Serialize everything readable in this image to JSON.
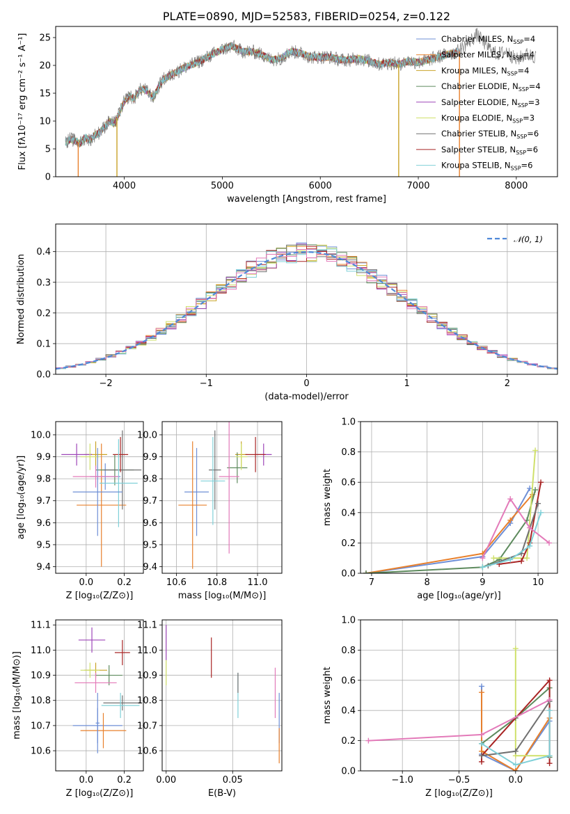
{
  "series_colors": [
    "#6e8fd6",
    "#e8802c",
    "#c9a227",
    "#5d8a5d",
    "#9e46b8",
    "#cfe06a",
    "#707070",
    "#a82424",
    "#7fd0d8"
  ],
  "accent_colors": {
    "normal_curve": "#4f88d8",
    "pink": "#e37ab9"
  },
  "chart_data": [
    {
      "id": "spectrum",
      "type": "line",
      "title": "PLATE=0890, MJD=52583, FIBERID=0254, z=0.122",
      "xlabel": "wavelength [Angstrom, rest frame]",
      "ylabel": "Flux [fλ10⁻¹⁷ erg cm⁻² s⁻¹ A⁻¹]",
      "xlim": [
        3300,
        8420
      ],
      "ylim": [
        0,
        27
      ],
      "xticks": [
        "4000",
        "5000",
        "6000",
        "7000",
        "8000"
      ],
      "yticks": [
        "0",
        "5",
        "10",
        "15",
        "20",
        "25"
      ],
      "legend_position": "upper-right",
      "series": [
        {
          "name": "Chabrier MILES, N_SSP=4"
        },
        {
          "name": "Salpeter MILES, N_SSP=4"
        },
        {
          "name": "Kroupa MILES, N_SSP=4"
        },
        {
          "name": "Chabrier ELODIE, N_SSP=4"
        },
        {
          "name": "Salpeter ELODIE, N_SSP=3"
        },
        {
          "name": "Kroupa ELODIE, N_SSP=3"
        },
        {
          "name": "Chabrier STELIB, N_SSP=6"
        },
        {
          "name": "Salpeter STELIB, N_SSP=6"
        },
        {
          "name": "Kroupa STELIB, N_SSP=6"
        }
      ],
      "envelope": {
        "x": [
          3400,
          3450,
          3500,
          3550,
          3600,
          3650,
          3700,
          3750,
          3800,
          3850,
          3900,
          3950,
          4000,
          4050,
          4100,
          4150,
          4200,
          4250,
          4300,
          4350,
          4400,
          4500,
          4600,
          4700,
          4800,
          4900,
          5000,
          5100,
          5200,
          5300,
          5400,
          5500,
          5600,
          5700,
          5800,
          5900,
          6000,
          6100,
          6200,
          6300,
          6400,
          6500,
          6600,
          6700,
          6800,
          6900,
          7000,
          7100,
          7200,
          7300,
          7400
        ],
        "y": [
          6.2,
          6.8,
          6.4,
          6.0,
          7.0,
          6.6,
          7.5,
          8.0,
          9.0,
          10.0,
          9.5,
          11.5,
          13.5,
          14.5,
          14.0,
          15.5,
          15.8,
          15.0,
          14.2,
          16.2,
          17.5,
          18.5,
          19.5,
          20.2,
          21.0,
          22.0,
          22.8,
          23.5,
          22.5,
          22.5,
          22.0,
          21.0,
          21.3,
          22.5,
          22.2,
          21.5,
          21.5,
          21.5,
          21.0,
          21.0,
          21.2,
          20.8,
          20.2,
          20.5,
          20.2,
          20.8,
          20.5,
          21.0,
          21.5,
          22.0,
          22.5
        ]
      },
      "extended_series": {
        "x": [
          7400,
          7500,
          7600,
          7700,
          7800,
          7900,
          8000,
          8100,
          8200
        ],
        "y": [
          22.5,
          24.0,
          25.5,
          23.5,
          22.0,
          22.5,
          21.0,
          22.0,
          21.5
        ]
      },
      "dropouts": [
        {
          "x": 3530,
          "color_index": 1
        },
        {
          "x": 3925,
          "color_index": 2
        },
        {
          "x": 6800,
          "color_index": 2
        },
        {
          "x": 7420,
          "color_index": 1
        }
      ]
    },
    {
      "id": "residuals",
      "type": "bar",
      "xlabel": "(data-model)/error",
      "ylabel": "Normed distribution",
      "xlim": [
        -2.5,
        2.5
      ],
      "ylim": [
        0,
        0.49
      ],
      "xticks": [
        "−2",
        "−1",
        "0",
        "1",
        "2"
      ],
      "yticks": [
        "0.0",
        "0.1",
        "0.2",
        "0.3",
        "0.4"
      ],
      "legend_position": "upper-right",
      "curve": {
        "name": "𝒩(0, 1)",
        "mean": 0,
        "sigma": 1
      }
    },
    {
      "id": "age-vs-Z",
      "type": "scatter",
      "xlabel": "Z [log₁₀(Z/Z⊙)]",
      "ylabel": "age  [log₁₀(age/yr)]",
      "xlim": [
        -0.16,
        0.3
      ],
      "ylim": [
        9.37,
        10.06
      ],
      "xticks": [
        "0.0",
        "0.2"
      ],
      "yticks": [
        "9.4",
        "9.5",
        "9.6",
        "9.7",
        "9.8",
        "9.9",
        "10.0"
      ],
      "points": [
        {
          "x": 0.1,
          "y": 9.81,
          "xerr": 0.08,
          "yerr": 0.06,
          "c": 0
        },
        {
          "x": 0.08,
          "y": 9.68,
          "xerr": 0.13,
          "yerr": 0.28,
          "c": 1
        },
        {
          "x": 0.05,
          "y": 9.91,
          "xerr": 0.06,
          "yerr": 0.06,
          "c": 2
        },
        {
          "x": 0.15,
          "y": 9.84,
          "xerr": 0.1,
          "yerr": 0.07,
          "c": 3
        },
        {
          "x": -0.05,
          "y": 9.91,
          "xerr": 0.08,
          "yerr": 0.05,
          "c": 4
        },
        {
          "x": 0.02,
          "y": 9.9,
          "xerr": 0.05,
          "yerr": 0.06,
          "c": 5
        },
        {
          "x": 0.19,
          "y": 9.84,
          "xerr": 0.1,
          "yerr": 0.18,
          "c": 6
        },
        {
          "x": 0.18,
          "y": 9.91,
          "xerr": 0.04,
          "yerr": 0.08,
          "c": 7
        },
        {
          "x": 0.17,
          "y": 9.78,
          "xerr": 0.1,
          "yerr": 0.2,
          "c": 8
        },
        {
          "x": 0.06,
          "y": 9.74,
          "xerr": 0.13,
          "yerr": 0.2,
          "c": 0
        },
        {
          "x": 0.05,
          "y": 9.81,
          "xerr": 0.12,
          "yerr": 0.05,
          "c": "pink"
        }
      ]
    },
    {
      "id": "age-vs-mass",
      "type": "scatter",
      "xlabel": "mass [log₁₀(M/M⊙)]",
      "ylabel": "",
      "xlim": [
        10.53,
        11.12
      ],
      "ylim": [
        9.37,
        10.06
      ],
      "xticks": [
        "10.6",
        "10.8",
        "11.0"
      ],
      "yticks": [
        "9.4",
        "9.5",
        "9.6",
        "9.7",
        "9.8",
        "9.9",
        "10.0"
      ],
      "points": [
        {
          "x": 10.7,
          "y": 9.74,
          "xerr": 0.06,
          "yerr": 0.2,
          "c": 0
        },
        {
          "x": 10.68,
          "y": 9.68,
          "xerr": 0.07,
          "yerr": 0.29,
          "c": 1
        },
        {
          "x": 10.92,
          "y": 9.91,
          "xerr": 0.03,
          "yerr": 0.06,
          "c": 2
        },
        {
          "x": 10.9,
          "y": 9.85,
          "xerr": 0.05,
          "yerr": 0.07,
          "c": 3
        },
        {
          "x": 11.03,
          "y": 9.91,
          "xerr": 0.04,
          "yerr": 0.05,
          "c": 4
        },
        {
          "x": 10.92,
          "y": 9.9,
          "xerr": 0.03,
          "yerr": 0.06,
          "c": 5
        },
        {
          "x": 10.79,
          "y": 9.84,
          "xerr": 0.03,
          "yerr": 0.18,
          "c": 6
        },
        {
          "x": 10.99,
          "y": 9.91,
          "xerr": 0.05,
          "yerr": 0.08,
          "c": 7
        },
        {
          "x": 10.78,
          "y": 9.79,
          "xerr": 0.06,
          "yerr": 0.2,
          "c": 8
        },
        {
          "x": 10.86,
          "y": 9.81,
          "xerr": 0.05,
          "yerr": 0.35,
          "c": "pink"
        }
      ]
    },
    {
      "id": "weight-vs-age",
      "type": "line",
      "xlabel": "age  [log₁₀(age/yr)]",
      "ylabel": "mass weight",
      "xlim": [
        6.8,
        10.35
      ],
      "ylim": [
        0,
        1
      ],
      "xticks": [
        "7",
        "8",
        "9",
        "10"
      ],
      "yticks": [
        "0.0",
        "0.2",
        "0.4",
        "0.6",
        "0.8",
        "1.0"
      ],
      "series": [
        {
          "c": 0,
          "x": [
            6.9,
            9.0,
            9.5,
            9.85
          ],
          "y": [
            0.0,
            0.11,
            0.33,
            0.56
          ]
        },
        {
          "c": 1,
          "x": [
            6.9,
            9.0,
            9.5,
            9.9
          ],
          "y": [
            0.0,
            0.13,
            0.35,
            0.52
          ]
        },
        {
          "c": 3,
          "x": [
            6.9,
            9.0,
            9.3,
            9.8,
            9.95
          ],
          "y": [
            0.0,
            0.04,
            0.09,
            0.35,
            0.55
          ]
        },
        {
          "c": 5,
          "x": [
            9.2,
            9.8,
            9.95
          ],
          "y": [
            0.1,
            0.1,
            0.81
          ]
        },
        {
          "c": 7,
          "x": [
            9.3,
            9.7,
            9.85,
            10.05
          ],
          "y": [
            0.06,
            0.08,
            0.2,
            0.6
          ]
        },
        {
          "c": 6,
          "x": [
            9.1,
            9.7,
            10.0
          ],
          "y": [
            0.05,
            0.13,
            0.46
          ]
        },
        {
          "c": 8,
          "x": [
            9.0,
            9.5,
            9.85,
            10.05
          ],
          "y": [
            0.04,
            0.09,
            0.18,
            0.4
          ]
        },
        {
          "c": "pink",
          "x": [
            9.0,
            9.5,
            9.85,
            10.2
          ],
          "y": [
            0.1,
            0.49,
            0.3,
            0.2
          ]
        }
      ]
    },
    {
      "id": "mass-vs-Z",
      "type": "scatter",
      "xlabel": "Z [log₁₀(Z/Z⊙)]",
      "ylabel": "mass [log₁₀(M/M⊙)]",
      "xlim": [
        -0.16,
        0.3
      ],
      "ylim": [
        10.52,
        11.12
      ],
      "xticks": [
        "0.0",
        "0.2"
      ],
      "yticks": [
        "10.6",
        "10.7",
        "10.8",
        "10.9",
        "11.0",
        "11.1"
      ],
      "points": [
        {
          "x": 0.06,
          "y": 10.7,
          "xerr": 0.13,
          "yerr": 0.07,
          "c": 0
        },
        {
          "x": 0.09,
          "y": 10.68,
          "xerr": 0.12,
          "yerr": 0.07,
          "c": 1
        },
        {
          "x": 0.05,
          "y": 10.92,
          "xerr": 0.06,
          "yerr": 0.03,
          "c": 2
        },
        {
          "x": 0.12,
          "y": 10.9,
          "xerr": 0.07,
          "yerr": 0.04,
          "c": 3
        },
        {
          "x": 0.03,
          "y": 11.04,
          "xerr": 0.07,
          "yerr": 0.05,
          "c": 4
        },
        {
          "x": 0.02,
          "y": 10.92,
          "xerr": 0.05,
          "yerr": 0.03,
          "c": 5
        },
        {
          "x": 0.19,
          "y": 10.79,
          "xerr": 0.1,
          "yerr": 0.03,
          "c": 6
        },
        {
          "x": 0.19,
          "y": 10.99,
          "xerr": 0.04,
          "yerr": 0.05,
          "c": 7
        },
        {
          "x": 0.18,
          "y": 10.78,
          "xerr": 0.1,
          "yerr": 0.05,
          "c": 8
        },
        {
          "x": 0.05,
          "y": 10.87,
          "xerr": 0.11,
          "yerr": 0.04,
          "c": "pink"
        },
        {
          "x": 0.06,
          "y": 10.71,
          "xerr": 0.01,
          "yerr": 0.12,
          "c": 0
        }
      ]
    },
    {
      "id": "mass-vs-ebv",
      "type": "scatter",
      "xlabel": "E(B-V)",
      "ylabel": "",
      "xlim": [
        -0.003,
        0.087
      ],
      "ylim": [
        10.52,
        11.12
      ],
      "xticks": [
        "0.00",
        "0.05"
      ],
      "yticks": [
        "10.6",
        "10.7",
        "10.8",
        "10.9",
        "11.0",
        "11.1"
      ],
      "points": [
        {
          "x": 0.0,
          "y": 11.03,
          "yerr": 0.07,
          "c": 4
        },
        {
          "x": 0.0,
          "y": 10.91,
          "yerr": 0.05,
          "c": 5
        },
        {
          "x": 0.034,
          "y": 10.97,
          "yerr": 0.08,
          "c": 7
        },
        {
          "x": 0.054,
          "y": 10.82,
          "yerr": 0.09,
          "c": 8
        },
        {
          "x": 0.054,
          "y": 10.87,
          "yerr": 0.04,
          "c": 6
        },
        {
          "x": 0.082,
          "y": 10.83,
          "yerr": 0.1,
          "c": "pink"
        },
        {
          "x": 0.085,
          "y": 10.73,
          "yerr": 0.1,
          "c": 0
        },
        {
          "x": 0.085,
          "y": 10.62,
          "yerr": 0.07,
          "c": 1
        }
      ]
    },
    {
      "id": "weight-vs-Z",
      "type": "line",
      "xlabel": "Z [log₁₀(Z/Z⊙)]",
      "ylabel": "mass weight",
      "xlim": [
        -1.37,
        0.37
      ],
      "ylim": [
        0,
        1
      ],
      "xticks": [
        "−1.0",
        "−0.5",
        "0.0"
      ],
      "yticks": [
        "0.0",
        "0.2",
        "0.4",
        "0.6",
        "0.8",
        "1.0"
      ],
      "series": [
        {
          "c": 0,
          "x": [
            -0.3,
            -0.3,
            0.0,
            0.3
          ],
          "y": [
            0.56,
            0.11,
            0.0,
            0.33
          ]
        },
        {
          "c": 1,
          "x": [
            -0.3,
            -0.3,
            0.0,
            0.3
          ],
          "y": [
            0.52,
            0.13,
            0.0,
            0.35
          ]
        },
        {
          "c": 5,
          "x": [
            0.0,
            0.0,
            0.3
          ],
          "y": [
            0.81,
            0.1,
            0.1
          ]
        },
        {
          "c": 3,
          "x": [
            -0.3,
            0.0,
            0.3,
            0.3
          ],
          "y": [
            0.18,
            0.35,
            0.55,
            0.09
          ]
        },
        {
          "c": 7,
          "x": [
            -0.3,
            -0.3,
            0.3,
            0.3
          ],
          "y": [
            0.06,
            0.1,
            0.6,
            0.05
          ]
        },
        {
          "c": 6,
          "x": [
            -0.3,
            0.0,
            0.3
          ],
          "y": [
            0.1,
            0.13,
            0.46
          ]
        },
        {
          "c": 8,
          "x": [
            -0.3,
            0.0,
            0.3,
            0.3
          ],
          "y": [
            0.18,
            0.04,
            0.1,
            0.4
          ]
        },
        {
          "c": "pink",
          "x": [
            -1.3,
            -0.3,
            0.3
          ],
          "y": [
            0.2,
            0.24,
            0.47
          ]
        }
      ]
    }
  ]
}
